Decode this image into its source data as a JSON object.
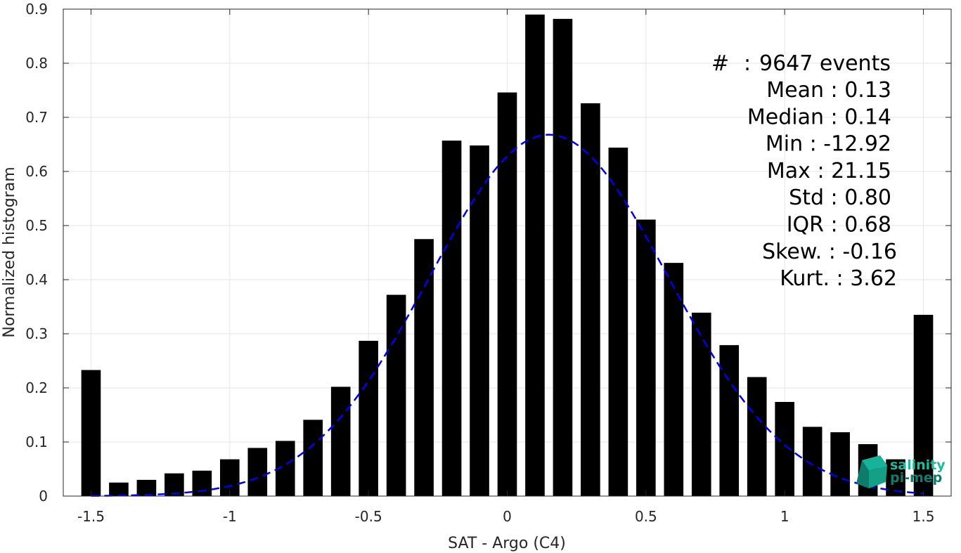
{
  "chart_data": {
    "type": "bar",
    "xlabel": "SAT - Argo (C4)",
    "ylabel": "Normalized histogram",
    "xlim": [
      -1.6,
      1.6
    ],
    "ylim": [
      0,
      0.9
    ],
    "grid": true,
    "x_ticks": [
      -1.5,
      -1,
      -0.5,
      0,
      0.5,
      1,
      1.5
    ],
    "x_tick_labels": [
      "-1.5",
      "-1",
      "-0.5",
      "0",
      "0.5",
      "1",
      "1.5"
    ],
    "y_ticks": [
      0,
      0.1,
      0.2,
      0.3,
      0.4,
      0.5,
      0.6,
      0.7,
      0.8,
      0.9
    ],
    "y_tick_labels": [
      "0",
      "0.1",
      "0.2",
      "0.3",
      "0.4",
      "0.5",
      "0.6",
      "0.7",
      "0.8",
      "0.9"
    ],
    "bar_width": 0.07,
    "bars": {
      "x": [
        -1.5,
        -1.4,
        -1.3,
        -1.2,
        -1.1,
        -1.0,
        -0.9,
        -0.8,
        -0.7,
        -0.6,
        -0.5,
        -0.4,
        -0.3,
        -0.2,
        -0.1,
        0.0,
        0.1,
        0.2,
        0.3,
        0.4,
        0.5,
        0.6,
        0.7,
        0.8,
        0.9,
        1.0,
        1.1,
        1.2,
        1.3,
        1.4,
        1.5
      ],
      "values": [
        0.233,
        0.025,
        0.03,
        0.042,
        0.047,
        0.068,
        0.089,
        0.102,
        0.141,
        0.202,
        0.287,
        0.372,
        0.475,
        0.657,
        0.648,
        0.746,
        0.89,
        0.882,
        0.726,
        0.644,
        0.511,
        0.431,
        0.339,
        0.279,
        0.22,
        0.174,
        0.128,
        0.118,
        0.096,
        0.068,
        0.335
      ],
      "color": "#000000"
    },
    "fit": {
      "type": "gaussian",
      "mean": 0.15,
      "std": 0.43,
      "peak": 0.668,
      "x_range": [
        -1.5,
        1.5
      ],
      "color": "#0000ee",
      "style": "dashed"
    }
  },
  "stats": [
    {
      "key": "#",
      "value": "9647 events"
    },
    {
      "key": "Mean",
      "value": "0.13"
    },
    {
      "key": "Median",
      "value": "0.14"
    },
    {
      "key": "Min",
      "value": "-12.92"
    },
    {
      "key": "Max",
      "value": "21.15"
    },
    {
      "key": "Std",
      "value": "0.80"
    },
    {
      "key": "IQR",
      "value": "0.68"
    },
    {
      "key": "Skew.",
      "value": "-0.16"
    },
    {
      "key": "Kurt.",
      "value": "3.62"
    }
  ],
  "logo": {
    "line1": "salinity",
    "line2": "pi-mep",
    "colors": [
      "#1abc9c",
      "#0e7c6b"
    ]
  }
}
